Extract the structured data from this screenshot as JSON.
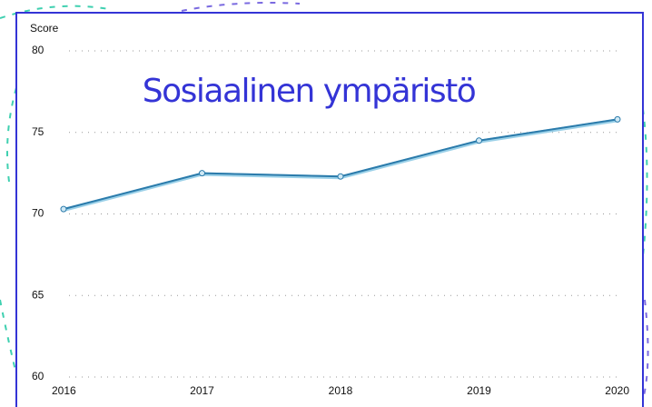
{
  "chart_data": {
    "type": "line",
    "title": "Sosiaalinen ympäristö",
    "y_label": "Score",
    "x": [
      2016,
      2017,
      2018,
      2019,
      2020
    ],
    "xlim": [
      2016,
      2020
    ],
    "xticks": [
      2016,
      2017,
      2018,
      2019,
      2020
    ],
    "series": [
      {
        "name": "Sosiaalinen ympäristö",
        "color": "#2b7bab",
        "values": [
          70.3,
          72.5,
          72.3,
          74.5,
          75.8
        ]
      }
    ],
    "ylim": [
      60,
      80
    ],
    "yticks": [
      60,
      65,
      70,
      75,
      80
    ],
    "grid": true
  }
}
